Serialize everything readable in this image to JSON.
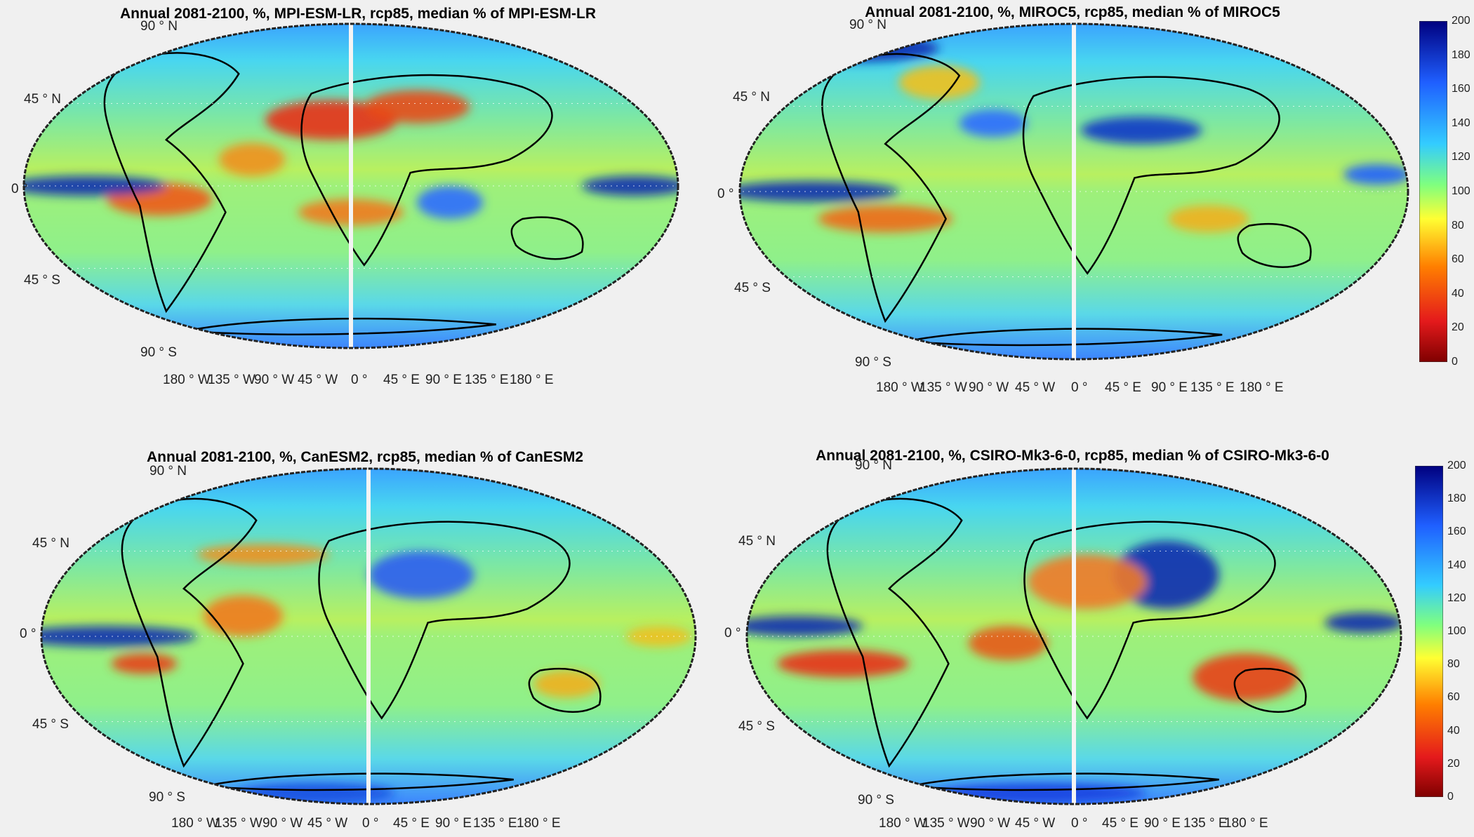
{
  "colorbar": {
    "ticks": [
      "200",
      "180",
      "160",
      "140",
      "120",
      "100",
      "80",
      "60",
      "40",
      "20",
      "0"
    ],
    "range": [
      0,
      200
    ],
    "colormap": "jet-reversed",
    "colors": [
      "#7f0000",
      "#e41a1c",
      "#ff7f00",
      "#ffff33",
      "#7fff7f",
      "#33ccff",
      "#1f5fff",
      "#00007f"
    ]
  },
  "panels": [
    {
      "title": "Annual 2081-2100, %, MPI-ESM-LR, rcp85, median % of MPI-ESM-LR",
      "lat_labels": [
        "90 ° N",
        "45 ° N",
        "0 °",
        "45 ° S",
        "90 ° S"
      ],
      "lon_labels": [
        "180 ° W",
        "135 ° W",
        "90 ° W",
        "45 ° W",
        "0 °",
        "45 ° E",
        "90 ° E",
        "135 ° E",
        "180 ° E"
      ]
    },
    {
      "title": "Annual 2081-2100, %, MIROC5, rcp85, median % of MIROC5",
      "lat_labels": [
        "90 ° N",
        "45 ° N",
        "0 °",
        "45 ° S",
        "90 ° S"
      ],
      "lon_labels": [
        "180 ° W",
        "135 ° W",
        "90 ° W",
        "45 ° W",
        "0 °",
        "45 ° E",
        "90 ° E",
        "135 ° E",
        "180 ° E"
      ]
    },
    {
      "title": "Annual 2081-2100, %, CanESM2, rcp85, median % of CanESM2",
      "lat_labels": [
        "90 ° N",
        "45 ° N",
        "0 °",
        "45 ° S",
        "90 ° S"
      ],
      "lon_labels": [
        "180 ° W",
        "135 ° W",
        "90 ° W",
        "45 ° W",
        "0 °",
        "45 ° E",
        "90 ° E",
        "135 ° E",
        "180 ° E"
      ]
    },
    {
      "title": "Annual 2081-2100, %, CSIRO-Mk3-6-0, rcp85, median % of CSIRO-Mk3-6-0",
      "lat_labels": [
        "90 ° N",
        "45 ° N",
        "0 °",
        "45 ° S",
        "90 ° S"
      ],
      "lon_labels": [
        "180 ° W",
        "135 ° W",
        "90 ° W",
        "45 ° W",
        "0 °",
        "45 ° E",
        "90 ° E",
        "135 ° E",
        "180 ° E"
      ]
    }
  ]
}
